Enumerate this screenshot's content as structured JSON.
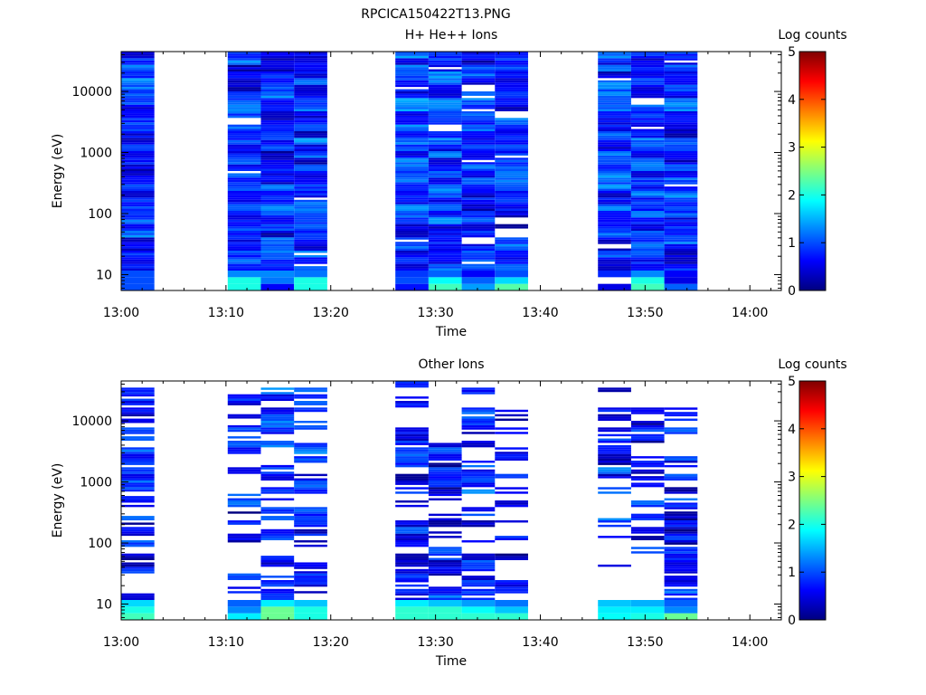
{
  "figure": {
    "title": "RPCICA150422T13.PNG"
  },
  "colors": {
    "background": "#ffffff",
    "frame": "#000000",
    "colormap": [
      "#00007f",
      "#0000ff",
      "#007fff",
      "#00ffff",
      "#7fff7f",
      "#ffff00",
      "#ff7f00",
      "#ff0000",
      "#7f0000"
    ]
  },
  "chart_data": [
    {
      "type": "heatmap",
      "title": "H+ He++ Ions",
      "xlabel": "Time",
      "ylabel": "Energy (eV)",
      "yscale": "log",
      "ylim": [
        5.5,
        45000
      ],
      "xlim_minutes": [
        0,
        63
      ],
      "xticks": [
        "13:00",
        "13:10",
        "13:20",
        "13:30",
        "13:40",
        "13:50",
        "14:00"
      ],
      "yticks": [
        "10",
        "100",
        "1000",
        "10000"
      ],
      "colorbar": {
        "label": "Log counts",
        "range": [
          0,
          5
        ],
        "ticks": [
          "0",
          "1",
          "2",
          "3",
          "4",
          "5"
        ]
      },
      "columns": [
        {
          "start": "13:00:00",
          "end": "13:03:10",
          "seed": 11,
          "base": 0.85,
          "gap": 0.0,
          "lowE": [
            1.0,
            1.0,
            1.0
          ]
        },
        {
          "start": "13:10:10",
          "end": "13:13:20",
          "seed": 23,
          "base": 0.75,
          "gap": 0.02,
          "lowE": [
            2.0,
            2.0,
            1.3
          ]
        },
        {
          "start": "13:13:20",
          "end": "13:16:30",
          "seed": 37,
          "base": 0.75,
          "gap": 0.01,
          "lowE": [
            0.6,
            1.2,
            1.3
          ]
        },
        {
          "start": "13:16:30",
          "end": "13:19:40",
          "seed": 41,
          "base": 0.8,
          "gap": 0.03,
          "lowE": [
            2.0,
            2.0,
            1.2
          ]
        },
        {
          "start": "13:26:10",
          "end": "13:29:20",
          "seed": 53,
          "base": 0.9,
          "gap": 0.02,
          "lowE": [
            0.7,
            1.0,
            0.9
          ]
        },
        {
          "start": "13:29:20",
          "end": "13:32:30",
          "seed": 61,
          "base": 0.8,
          "gap": 0.05,
          "lowE": [
            2.2,
            1.9,
            1.1
          ]
        },
        {
          "start": "13:32:30",
          "end": "13:35:40",
          "seed": 71,
          "base": 0.8,
          "gap": 0.05,
          "lowE": [
            1.4,
            1.1,
            0.6
          ]
        },
        {
          "start": "13:35:40",
          "end": "13:38:50",
          "seed": 83,
          "base": 0.75,
          "gap": 0.03,
          "lowE": [
            2.3,
            1.7,
            1.0
          ]
        },
        {
          "start": "13:45:30",
          "end": "13:48:40",
          "seed": 97,
          "base": 0.85,
          "gap": 0.03,
          "lowE": [
            0.5,
            -1,
            0.8
          ]
        },
        {
          "start": "13:48:40",
          "end": "13:51:50",
          "seed": 101,
          "base": 0.8,
          "gap": 0.04,
          "lowE": [
            2.2,
            2.0,
            1.3
          ]
        },
        {
          "start": "13:51:50",
          "end": "13:55:00",
          "seed": 113,
          "base": 0.8,
          "gap": 0.01,
          "lowE": [
            1.1,
            0.5,
            0.6
          ]
        }
      ]
    },
    {
      "type": "heatmap",
      "title": "Other Ions",
      "xlabel": "Time",
      "ylabel": "Energy (eV)",
      "yscale": "log",
      "ylim": [
        5.5,
        45000
      ],
      "xlim_minutes": [
        0,
        63
      ],
      "xticks": [
        "13:00",
        "13:10",
        "13:20",
        "13:30",
        "13:40",
        "13:50",
        "14:00"
      ],
      "yticks": [
        "10",
        "100",
        "1000",
        "10000"
      ],
      "colorbar": {
        "label": "Log counts",
        "range": [
          0,
          5
        ],
        "ticks": [
          "0",
          "1",
          "2",
          "3",
          "4",
          "5"
        ]
      },
      "columns": [
        {
          "start": "13:00:00",
          "end": "13:03:10",
          "seed": 131,
          "base": 0.7,
          "gap": 0.25,
          "lowE": [
            2.2,
            2.0,
            1.7
          ],
          "top": 32000
        },
        {
          "start": "13:10:10",
          "end": "13:13:20",
          "seed": 137,
          "base": 0.6,
          "gap": 0.45,
          "lowE": [
            1.8,
            1.3,
            1.1
          ],
          "top": 33000
        },
        {
          "start": "13:13:20",
          "end": "13:16:30",
          "seed": 149,
          "base": 0.8,
          "gap": 0.25,
          "lowE": [
            2.4,
            2.4,
            1.8
          ],
          "top": 40000
        },
        {
          "start": "13:16:30",
          "end": "13:19:40",
          "seed": 157,
          "base": 0.7,
          "gap": 0.35,
          "lowE": [
            2.0,
            2.0,
            1.6
          ],
          "top": 38000
        },
        {
          "start": "13:26:10",
          "end": "13:29:20",
          "seed": 163,
          "base": 0.75,
          "gap": 0.2,
          "lowE": [
            2.1,
            2.1,
            1.8
          ],
          "top": 38000
        },
        {
          "start": "13:29:20",
          "end": "13:32:30",
          "seed": 173,
          "base": 0.65,
          "gap": 0.3,
          "lowE": [
            2.1,
            2.1,
            1.6
          ],
          "top": 6000
        },
        {
          "start": "13:32:30",
          "end": "13:35:40",
          "seed": 181,
          "base": 0.7,
          "gap": 0.3,
          "lowE": [
            2.1,
            1.9,
            1.4
          ],
          "top": 30000
        },
        {
          "start": "13:35:40",
          "end": "13:38:50",
          "seed": 191,
          "base": 0.6,
          "gap": 0.45,
          "lowE": [
            2.1,
            1.6,
            1.2
          ],
          "top": 34000
        },
        {
          "start": "13:45:30",
          "end": "13:48:40",
          "seed": 199,
          "base": 0.7,
          "gap": 0.35,
          "lowE": [
            1.9,
            1.8,
            1.6
          ],
          "top": 30000
        },
        {
          "start": "13:48:40",
          "end": "13:51:50",
          "seed": 211,
          "base": 0.65,
          "gap": 0.5,
          "lowE": [
            2.0,
            1.8,
            1.5
          ],
          "top": 15000
        },
        {
          "start": "13:51:50",
          "end": "13:55:00",
          "seed": 223,
          "base": 0.65,
          "gap": 0.3,
          "lowE": [
            2.4,
            1.3,
            1.1
          ],
          "top": 20000
        }
      ]
    }
  ]
}
